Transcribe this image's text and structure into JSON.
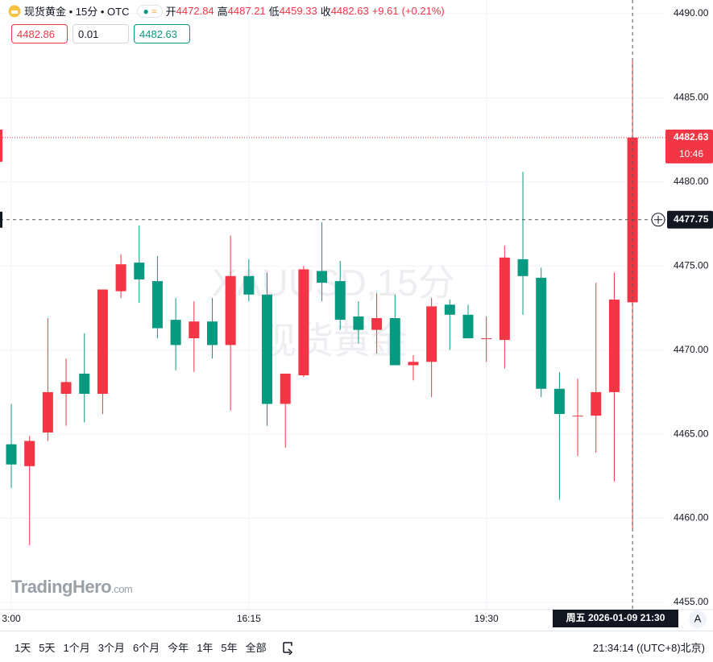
{
  "header": {
    "symbol": "现货黄金 • 15分 • OTC",
    "toggle": "≈",
    "open_label": "开",
    "open": "4472.84",
    "high_label": "高",
    "high": "4487.21",
    "low_label": "低",
    "low": "4459.33",
    "close_label": "收",
    "close": "4482.63",
    "change": "+9.61",
    "change_percent": "(+0.21%)"
  },
  "order_panel": {
    "sell": "4482.86",
    "quantity": "0.01",
    "buy": "4482.63"
  },
  "chart_data": {
    "type": "candlestick",
    "categories": [
      "3:00",
      null,
      null,
      null,
      null,
      null,
      null,
      null,
      null,
      null,
      null,
      null,
      null,
      "16:15",
      null,
      null,
      null,
      null,
      null,
      null,
      null,
      null,
      null,
      null,
      null,
      null,
      "19:30",
      null,
      null,
      null,
      null,
      null,
      null,
      null,
      null
    ],
    "open": [
      4464.4,
      4463.1,
      4465.1,
      4467.4,
      4468.6,
      4467.4,
      4473.5,
      4475.2,
      4474.1,
      4471.8,
      4470.7,
      4471.7,
      4470.3,
      4474.4,
      4473.3,
      4466.8,
      4468.5,
      4474.7,
      4474.1,
      4472.0,
      4471.2,
      4471.9,
      4469.1,
      4469.3,
      4472.7,
      4472.1,
      4470.7,
      4470.6,
      4475.4,
      4474.3,
      4467.7,
      4466.1,
      4466.1,
      4467.5,
      4472.84
    ],
    "high": [
      4466.8,
      4464.9,
      4471.9,
      4469.5,
      4471.0,
      4473.6,
      4475.7,
      4477.4,
      4475.6,
      4473.1,
      4472.9,
      4473.1,
      4476.8,
      4475.4,
      4474.6,
      4468.6,
      4475.0,
      4477.6,
      4475.3,
      4472.9,
      4473.4,
      4473.3,
      4469.7,
      4473.1,
      4473.0,
      4472.7,
      4472.0,
      4476.2,
      4480.6,
      4474.9,
      4468.7,
      4468.3,
      4474.0,
      4474.6,
      4487.21
    ],
    "low": [
      4461.8,
      4458.4,
      4464.6,
      4465.5,
      4465.7,
      4466.2,
      4473.1,
      4472.8,
      4470.7,
      4468.8,
      4468.7,
      4469.5,
      4466.4,
      4472.9,
      4465.5,
      4464.2,
      4468.4,
      4472.9,
      4471.2,
      4470.4,
      4469.8,
      4469.1,
      4468.2,
      4467.2,
      4470.0,
      4470.7,
      4469.3,
      4468.9,
      4472.1,
      4467.2,
      4461.1,
      4463.7,
      4463.9,
      4462.2,
      4459.33
    ],
    "close": [
      4463.2,
      4464.6,
      4467.5,
      4468.1,
      4467.4,
      4473.6,
      4475.1,
      4474.2,
      4471.3,
      4470.3,
      4471.7,
      4470.3,
      4474.4,
      4473.3,
      4466.8,
      4468.6,
      4474.8,
      4474.0,
      4471.8,
      4471.2,
      4471.9,
      4469.1,
      4469.3,
      4472.6,
      4472.1,
      4470.7,
      4470.7,
      4475.5,
      4474.4,
      4467.7,
      4466.2,
      4466.1,
      4467.5,
      4473.0,
      4482.63
    ],
    "up_color": "#f23645",
    "down_color": "#089981",
    "ylim": [
      4454.57,
      4490.81
    ],
    "yticks": [
      {
        "value": 4455,
        "label": "4455.00"
      },
      {
        "value": 4460,
        "label": "4460.00"
      },
      {
        "value": 4465,
        "label": "4465.00"
      },
      {
        "value": 4470,
        "label": "4470.00"
      },
      {
        "value": 4475,
        "label": "4475.00"
      },
      {
        "value": 4480,
        "label": "4480.00"
      },
      {
        "value": 4485,
        "label": "4485.00"
      },
      {
        "value": 4490,
        "label": "4490.00"
      }
    ],
    "grid": true,
    "last_price_countdown": "10:46",
    "crosshair_price": 4477.75,
    "crosshair_time": "周五 2026-01-09 21:30",
    "watermark": [
      "XAUUSD,15分",
      "现货黄金"
    ]
  },
  "logo": {
    "name": "TradingHero",
    "suffix": ".com"
  },
  "toolbar": {
    "ranges": [
      "1天",
      "5天",
      "1个月",
      "3个月",
      "6个月",
      "今年",
      "1年",
      "5年",
      "全部"
    ],
    "clock": "21:34:14 ((UTC+8)北京)",
    "auto_button": "A"
  }
}
